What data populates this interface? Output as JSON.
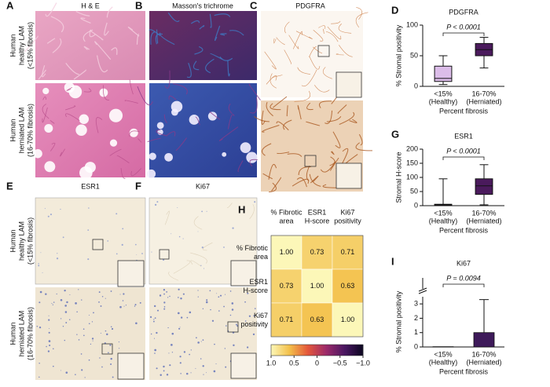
{
  "image_panels": [
    {
      "letter": "A",
      "title": "H & E"
    },
    {
      "letter": "B",
      "title": "Masson's trichrome"
    },
    {
      "letter": "C",
      "title": "PDGFRA"
    },
    {
      "letter": "E",
      "title": "ESR1"
    },
    {
      "letter": "F",
      "title": "Ki67"
    }
  ],
  "row_labels": [
    [
      "Human",
      "healthy LAM",
      "(<15% fibrosis)"
    ],
    [
      "Human",
      "herniated LAM",
      "(16-70% fibrosis)"
    ]
  ],
  "chart_data": [
    {
      "type": "box",
      "letter": "D",
      "title": "PDGFRA",
      "y_label": "% Stromal positivity",
      "x_label": "Percent fibrosis",
      "categories": [
        "<15%",
        "16-70%"
      ],
      "category_groups": [
        "(Healthy)",
        "(Herniated)"
      ],
      "annotation": "P < 0.0001",
      "boxes": [
        {
          "min": 3,
          "q1": 8,
          "median": 13,
          "q3": 33,
          "max": 50,
          "color": "#dcbde9"
        },
        {
          "min": 30,
          "q1": 50,
          "median": 60,
          "q3": 70,
          "max": 80,
          "color": "#4a1a5c"
        }
      ],
      "ylim": [
        0,
        100
      ],
      "yticks": [
        0,
        50,
        100
      ]
    },
    {
      "type": "box",
      "letter": "G",
      "title": "ESR1",
      "y_label": "Stromal H-score",
      "x_label": "Percent fibrosis",
      "categories": [
        "<15%",
        "16-70%"
      ],
      "category_groups": [
        "(Healthy)",
        "(Herniated)"
      ],
      "annotation": "P < 0.0001",
      "boxes": [
        {
          "min": 0,
          "q1": 1,
          "median": 3,
          "q3": 5,
          "max": 95,
          "color": "#dcbde9"
        },
        {
          "min": 3,
          "q1": 40,
          "median": 70,
          "q3": 95,
          "max": 145,
          "color": "#4a1a5c"
        }
      ],
      "ylim": [
        0,
        200
      ],
      "yticks": [
        0,
        50,
        100,
        150,
        200
      ]
    },
    {
      "type": "bar",
      "letter": "I",
      "title": "Ki67",
      "y_label": "% Stromal positivity",
      "x_label": "Percent fibrosis",
      "categories": [
        "<15%",
        "16-70%"
      ],
      "category_groups": [
        "(Healthy)",
        "(Herniated)"
      ],
      "annotation": "P = 0.0094",
      "values": [
        0.02,
        1.0
      ],
      "errors": [
        0,
        2.3
      ],
      "colors": [
        "#dcbde9",
        "#3e1a5a"
      ],
      "ylim": [
        0,
        3.5
      ],
      "yticks": [
        0,
        1,
        2,
        3
      ]
    },
    {
      "type": "heatmap",
      "letter": "H",
      "col_labels": [
        [
          "% Fibrotic",
          "area"
        ],
        [
          "ESR1",
          "H-score"
        ],
        [
          "Ki67",
          "positivity"
        ]
      ],
      "row_labels": [
        [
          "% Fibrotic",
          "area"
        ],
        [
          "ESR1",
          "H-score"
        ],
        [
          "Ki67",
          "positivity"
        ]
      ],
      "values": [
        [
          1,
          0.73,
          0.71
        ],
        [
          0.73,
          1,
          0.63
        ],
        [
          0.71,
          0.63,
          1
        ]
      ],
      "value_labels": [
        [
          "1.00",
          "0.73",
          "0.71"
        ],
        [
          "0.73",
          "1.00",
          "0.63"
        ],
        [
          "0.71",
          "0.63",
          "1.00"
        ]
      ],
      "clim": [
        -1,
        1
      ],
      "colorscale": [
        "#fcf7b8",
        "#f3c04a",
        "#e4573a",
        "#9c2a6a",
        "#4a1762",
        "#0b0620"
      ],
      "cticks": [
        {
          "value": 1,
          "label": "1.0"
        },
        0.5,
        0,
        {
          "value": -0.5,
          "label": "−0.5"
        },
        {
          "value": -1,
          "label": "−1.0"
        }
      ]
    }
  ]
}
